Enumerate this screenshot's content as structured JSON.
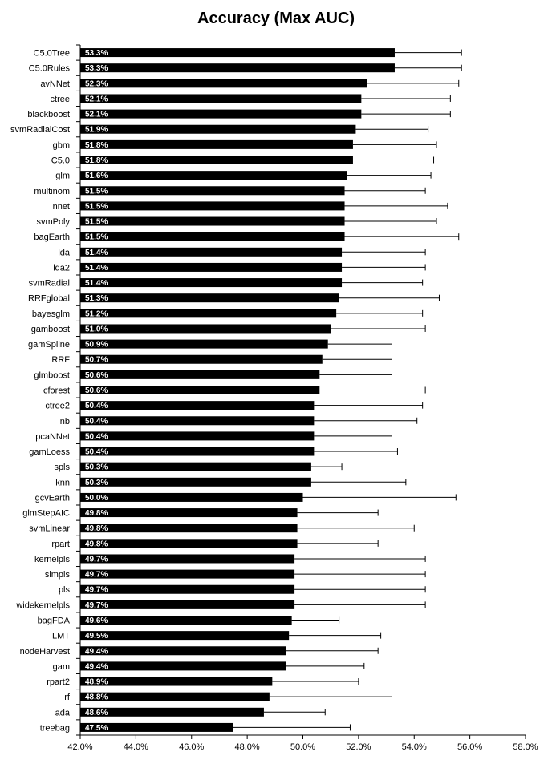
{
  "chart_data": {
    "type": "bar",
    "orientation": "horizontal",
    "title": "Accuracy (Max AUC)",
    "xlabel": "",
    "ylabel": "",
    "xlim": [
      42.0,
      58.0
    ],
    "x_ticks": [
      42.0,
      44.0,
      46.0,
      48.0,
      50.0,
      52.0,
      54.0,
      56.0,
      58.0
    ],
    "x_tick_labels": [
      "42.0%",
      "44.0%",
      "46.0%",
      "48.0%",
      "50.0%",
      "52.0%",
      "54.0%",
      "56.0%",
      "58.0%"
    ],
    "grid": false,
    "bar_color": "#000000",
    "label_color": "#ffffff",
    "error_bars": true,
    "categories": [
      "C5.0Tree",
      "C5.0Rules",
      "avNNet",
      "ctree",
      "blackboost",
      "svmRadialCost",
      "gbm",
      "C5.0",
      "glm",
      "multinom",
      "nnet",
      "svmPoly",
      "bagEarth",
      "lda",
      "lda2",
      "svmRadial",
      "RRFglobal",
      "bayesglm",
      "gamboost",
      "gamSpline",
      "RRF",
      "glmboost",
      "cforest",
      "ctree2",
      "nb",
      "pcaNNet",
      "gamLoess",
      "spls",
      "knn",
      "gcvEarth",
      "glmStepAIC",
      "svmLinear",
      "rpart",
      "kernelpls",
      "simpls",
      "pls",
      "widekernelpls",
      "bagFDA",
      "LMT",
      "nodeHarvest",
      "gam",
      "rpart2",
      "rf",
      "ada",
      "treebag"
    ],
    "values": [
      53.3,
      53.3,
      52.3,
      52.1,
      52.1,
      51.9,
      51.8,
      51.8,
      51.6,
      51.5,
      51.5,
      51.5,
      51.5,
      51.4,
      51.4,
      51.4,
      51.3,
      51.2,
      51.0,
      50.9,
      50.7,
      50.6,
      50.6,
      50.4,
      50.4,
      50.4,
      50.4,
      50.3,
      50.3,
      50.0,
      49.8,
      49.8,
      49.8,
      49.7,
      49.7,
      49.7,
      49.7,
      49.6,
      49.5,
      49.4,
      49.4,
      48.9,
      48.8,
      48.6,
      47.5
    ],
    "value_labels": [
      "53.3%",
      "53.3%",
      "52.3%",
      "52.1%",
      "52.1%",
      "51.9%",
      "51.8%",
      "51.8%",
      "51.6%",
      "51.5%",
      "51.5%",
      "51.5%",
      "51.5%",
      "51.4%",
      "51.4%",
      "51.4%",
      "51.3%",
      "51.2%",
      "51.0%",
      "50.9%",
      "50.7%",
      "50.6%",
      "50.6%",
      "50.4%",
      "50.4%",
      "50.4%",
      "50.4%",
      "50.3%",
      "50.3%",
      "50.0%",
      "49.8%",
      "49.8%",
      "49.8%",
      "49.7%",
      "49.7%",
      "49.7%",
      "49.7%",
      "49.6%",
      "49.5%",
      "49.4%",
      "49.4%",
      "48.9%",
      "48.8%",
      "48.6%",
      "47.5%"
    ],
    "error_plus": [
      2.4,
      2.4,
      3.3,
      3.2,
      3.2,
      2.6,
      3.0,
      2.9,
      3.0,
      2.9,
      3.7,
      3.3,
      4.1,
      3.0,
      3.0,
      2.9,
      3.6,
      3.1,
      3.4,
      2.3,
      2.5,
      2.6,
      3.8,
      3.9,
      3.7,
      2.8,
      3.0,
      1.1,
      3.4,
      5.5,
      2.9,
      4.2,
      2.9,
      4.7,
      4.7,
      4.7,
      4.7,
      1.7,
      3.3,
      3.3,
      2.8,
      3.1,
      4.4,
      2.2,
      4.2
    ]
  }
}
